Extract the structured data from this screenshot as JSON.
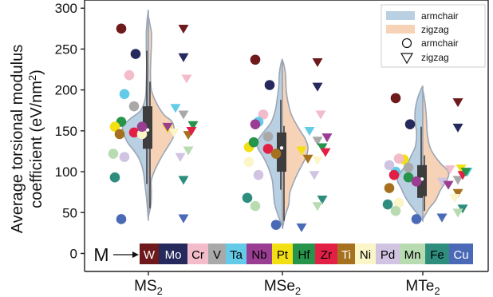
{
  "chart_data": {
    "type": "violin",
    "ylabel_line1": "Average torsional modulus",
    "ylabel_line2_prefix": "coefficient (eV/nm",
    "ylabel_line2_sup": "2",
    "ylabel_line2_suffix": ")",
    "ylim": [
      -22,
      310
    ],
    "yticks": [
      0,
      50,
      100,
      150,
      200,
      250,
      300
    ],
    "grid": false,
    "legend_position": "top-right",
    "categories": [
      {
        "base": "MS",
        "sub": "2"
      },
      {
        "base": "MSe",
        "sub": "2"
      },
      {
        "base": "MTe",
        "sub": "2"
      }
    ],
    "legend": {
      "violins": [
        {
          "label": "armchair",
          "color": "#b9cfe2"
        },
        {
          "label": "zigzag",
          "color": "#f6d2b6"
        }
      ],
      "markers": [
        {
          "label": "armchair",
          "shape": "circle"
        },
        {
          "label": "zigzag",
          "shape": "triangle-down"
        }
      ]
    },
    "metal_key": {
      "prefix": "M",
      "metals": [
        {
          "label": "W",
          "color": "#6e1a1c",
          "text_color": "#ffffff"
        },
        {
          "label": "Mo",
          "color": "#26295c",
          "text_color": "#ffffff"
        },
        {
          "label": "Cr",
          "color": "#f3bccb",
          "text_color": "#000000"
        },
        {
          "label": "V",
          "color": "#a9a9a9",
          "text_color": "#000000"
        },
        {
          "label": "Ta",
          "color": "#63cbe8",
          "text_color": "#000000"
        },
        {
          "label": "Nb",
          "color": "#9a3e93",
          "text_color": "#000000"
        },
        {
          "label": "Pt",
          "color": "#f2df14",
          "text_color": "#000000"
        },
        {
          "label": "Hf",
          "color": "#26944a",
          "text_color": "#000000"
        },
        {
          "label": "Zr",
          "color": "#e21f44",
          "text_color": "#000000"
        },
        {
          "label": "Ti",
          "color": "#a6711f",
          "text_color": "#ffffff"
        },
        {
          "label": "Ni",
          "color": "#fbf5c7",
          "text_color": "#000000"
        },
        {
          "label": "Pd",
          "color": "#d1c3e2",
          "text_color": "#000000"
        },
        {
          "label": "Mn",
          "color": "#b9dbb1",
          "text_color": "#000000"
        },
        {
          "label": "Fe",
          "color": "#2f8d7e",
          "text_color": "#000000"
        },
        {
          "label": "Cu",
          "color": "#4a6ab7",
          "text_color": "#ffffff"
        }
      ]
    },
    "violin_colors": {
      "armchair": "#b9cfe2",
      "zigzag": "#f6d2b6",
      "edge": "#9aa6b6"
    },
    "groups": [
      {
        "name": "MS2",
        "armchair": {
          "min": 40,
          "q1": 128,
          "median": 150,
          "q3": 180,
          "max": 298,
          "density": [
            [
              40,
              0
            ],
            [
              60,
              0.05
            ],
            [
              80,
              0.12
            ],
            [
              100,
              0.2
            ],
            [
              115,
              0.35
            ],
            [
              125,
              0.55
            ],
            [
              135,
              0.8
            ],
            [
              145,
              0.95
            ],
            [
              155,
              1
            ],
            [
              165,
              0.7
            ],
            [
              175,
              0.3
            ],
            [
              190,
              0.12
            ],
            [
              210,
              0.08
            ],
            [
              230,
              0.07
            ],
            [
              250,
              0.08
            ],
            [
              270,
              0.08
            ],
            [
              285,
              0.05
            ],
            [
              298,
              0
            ]
          ]
        },
        "zigzag": {
          "min": 45,
          "q1": 128,
          "median": 152,
          "q3": 180,
          "max": 290,
          "density": [
            [
              45,
              0
            ],
            [
              60,
              0.1
            ],
            [
              75,
              0.12
            ],
            [
              90,
              0.12
            ],
            [
              105,
              0.3
            ],
            [
              120,
              0.55
            ],
            [
              135,
              0.85
            ],
            [
              145,
              1
            ],
            [
              160,
              0.95
            ],
            [
              170,
              0.6
            ],
            [
              185,
              0.3
            ],
            [
              200,
              0.12
            ],
            [
              220,
              0.08
            ],
            [
              240,
              0.1
            ],
            [
              255,
              0.12
            ],
            [
              270,
              0.12
            ],
            [
              282,
              0.05
            ],
            [
              290,
              0
            ]
          ]
        },
        "armchair_points": [
          {
            "metal": "W",
            "value": 275
          },
          {
            "metal": "Mo",
            "value": 244
          },
          {
            "metal": "Cr",
            "value": 218
          },
          {
            "metal": "Ta",
            "value": 195
          },
          {
            "metal": "V",
            "value": 180
          },
          {
            "metal": "Hf",
            "value": 161
          },
          {
            "metal": "Pt",
            "value": 155
          },
          {
            "metal": "Ti",
            "value": 146
          },
          {
            "metal": "Zr",
            "value": 148
          },
          {
            "metal": "Ni",
            "value": 146
          },
          {
            "metal": "Fe",
            "value": 93
          },
          {
            "metal": "Pd",
            "value": 118
          },
          {
            "metal": "Mn",
            "value": 122
          },
          {
            "metal": "Cu",
            "value": 42
          },
          {
            "metal": "Nb",
            "value": 155
          }
        ],
        "zigzag_points": [
          {
            "metal": "W",
            "value": 275
          },
          {
            "metal": "Mo",
            "value": 240
          },
          {
            "metal": "Cr",
            "value": 214
          },
          {
            "metal": "Ta",
            "value": 178
          },
          {
            "metal": "V",
            "value": 170
          },
          {
            "metal": "Hf",
            "value": 157
          },
          {
            "metal": "Pt",
            "value": 153
          },
          {
            "metal": "Ti",
            "value": 145
          },
          {
            "metal": "Zr",
            "value": 150
          },
          {
            "metal": "Ni",
            "value": 148
          },
          {
            "metal": "Fe",
            "value": 90
          },
          {
            "metal": "Pd",
            "value": 118
          },
          {
            "metal": "Mn",
            "value": 126
          },
          {
            "metal": "Cu",
            "value": 43
          },
          {
            "metal": "Nb",
            "value": 155
          }
        ]
      },
      {
        "name": "MSe2",
        "armchair": {
          "min": 33,
          "q1": 100,
          "median": 130,
          "q3": 148,
          "max": 238,
          "density": [
            [
              33,
              0
            ],
            [
              45,
              0.15
            ],
            [
              60,
              0.3
            ],
            [
              75,
              0.35
            ],
            [
              90,
              0.4
            ],
            [
              105,
              0.55
            ],
            [
              118,
              0.75
            ],
            [
              128,
              0.95
            ],
            [
              136,
              1
            ],
            [
              146,
              0.8
            ],
            [
              160,
              0.45
            ],
            [
              175,
              0.28
            ],
            [
              190,
              0.2
            ],
            [
              205,
              0.14
            ],
            [
              220,
              0.12
            ],
            [
              232,
              0.06
            ],
            [
              238,
              0
            ]
          ]
        },
        "zigzag": {
          "min": 30,
          "q1": 100,
          "median": 128,
          "q3": 148,
          "max": 236,
          "density": [
            [
              30,
              0
            ],
            [
              45,
              0.1
            ],
            [
              60,
              0.25
            ],
            [
              75,
              0.3
            ],
            [
              95,
              0.55
            ],
            [
              110,
              0.8
            ],
            [
              120,
              0.95
            ],
            [
              130,
              1
            ],
            [
              140,
              0.9
            ],
            [
              155,
              0.6
            ],
            [
              170,
              0.35
            ],
            [
              185,
              0.22
            ],
            [
              200,
              0.15
            ],
            [
              220,
              0.12
            ],
            [
              232,
              0.05
            ],
            [
              236,
              0
            ]
          ]
        },
        "armchair_points": [
          {
            "metal": "W",
            "value": 237
          },
          {
            "metal": "Mo",
            "value": 206
          },
          {
            "metal": "Cr",
            "value": 170
          },
          {
            "metal": "Ta",
            "value": 161
          },
          {
            "metal": "V",
            "value": 143
          },
          {
            "metal": "Nb",
            "value": 158
          },
          {
            "metal": "Pt",
            "value": 130
          },
          {
            "metal": "Hf",
            "value": 136
          },
          {
            "metal": "Zr",
            "value": 128
          },
          {
            "metal": "Ti",
            "value": 122
          },
          {
            "metal": "Ni",
            "value": 112
          },
          {
            "metal": "Pd",
            "value": 96
          },
          {
            "metal": "Fe",
            "value": 68
          },
          {
            "metal": "Mn",
            "value": 58
          },
          {
            "metal": "Cu",
            "value": 35
          }
        ],
        "zigzag_points": [
          {
            "metal": "W",
            "value": 234
          },
          {
            "metal": "Mo",
            "value": 204
          },
          {
            "metal": "Cr",
            "value": 170
          },
          {
            "metal": "Ta",
            "value": 150
          },
          {
            "metal": "V",
            "value": 138
          },
          {
            "metal": "Nb",
            "value": 142
          },
          {
            "metal": "Pt",
            "value": 126
          },
          {
            "metal": "Hf",
            "value": 130
          },
          {
            "metal": "Zr",
            "value": 124
          },
          {
            "metal": "Ti",
            "value": 116
          },
          {
            "metal": "Ni",
            "value": 114
          },
          {
            "metal": "Pd",
            "value": 96
          },
          {
            "metal": "Fe",
            "value": 66
          },
          {
            "metal": "Mn",
            "value": 58
          },
          {
            "metal": "Cu",
            "value": 32
          }
        ]
      },
      {
        "name": "MTe2",
        "armchair": {
          "min": 40,
          "q1": 68,
          "median": 90,
          "q3": 108,
          "max": 205,
          "density": [
            [
              40,
              0
            ],
            [
              50,
              0.25
            ],
            [
              60,
              0.5
            ],
            [
              70,
              0.7
            ],
            [
              80,
              0.85
            ],
            [
              90,
              1
            ],
            [
              100,
              0.85
            ],
            [
              110,
              0.6
            ],
            [
              120,
              0.45
            ],
            [
              130,
              0.3
            ],
            [
              140,
              0.25
            ],
            [
              150,
              0.25
            ],
            [
              160,
              0.3
            ],
            [
              175,
              0.3
            ],
            [
              190,
              0.2
            ],
            [
              200,
              0.08
            ],
            [
              205,
              0
            ]
          ]
        },
        "zigzag": {
          "min": 42,
          "q1": 70,
          "median": 92,
          "q3": 108,
          "max": 200,
          "density": [
            [
              42,
              0
            ],
            [
              55,
              0.25
            ],
            [
              65,
              0.5
            ],
            [
              78,
              0.7
            ],
            [
              90,
              0.95
            ],
            [
              100,
              1
            ],
            [
              110,
              0.7
            ],
            [
              120,
              0.45
            ],
            [
              130,
              0.28
            ],
            [
              145,
              0.18
            ],
            [
              160,
              0.15
            ],
            [
              175,
              0.12
            ],
            [
              190,
              0.06
            ],
            [
              200,
              0
            ]
          ]
        },
        "armchair_points": [
          {
            "metal": "W",
            "value": 190
          },
          {
            "metal": "Mo",
            "value": 158
          },
          {
            "metal": "Pt",
            "value": 115
          },
          {
            "metal": "Cr",
            "value": 116
          },
          {
            "metal": "V",
            "value": 105
          },
          {
            "metal": "Ta",
            "value": 100
          },
          {
            "metal": "Pd",
            "value": 108
          },
          {
            "metal": "Zr",
            "value": 96
          },
          {
            "metal": "Hf",
            "value": 93
          },
          {
            "metal": "Nb",
            "value": 88
          },
          {
            "metal": "Ti",
            "value": 80
          },
          {
            "metal": "Ni",
            "value": 62
          },
          {
            "metal": "Fe",
            "value": 60
          },
          {
            "metal": "Mn",
            "value": 52
          },
          {
            "metal": "Cu",
            "value": 42
          }
        ],
        "zigzag_points": [
          {
            "metal": "W",
            "value": 185
          },
          {
            "metal": "Mo",
            "value": 154
          },
          {
            "metal": "Pt",
            "value": 104
          },
          {
            "metal": "Cr",
            "value": 103
          },
          {
            "metal": "V",
            "value": 90
          },
          {
            "metal": "Ta",
            "value": 100
          },
          {
            "metal": "Pd",
            "value": 88
          },
          {
            "metal": "Zr",
            "value": 96
          },
          {
            "metal": "Hf",
            "value": 100
          },
          {
            "metal": "Nb",
            "value": 84
          },
          {
            "metal": "Ti",
            "value": 74
          },
          {
            "metal": "Ni",
            "value": 68
          },
          {
            "metal": "Fe",
            "value": 55
          },
          {
            "metal": "Mn",
            "value": 50
          },
          {
            "metal": "Cu",
            "value": 44
          }
        ]
      }
    ]
  }
}
